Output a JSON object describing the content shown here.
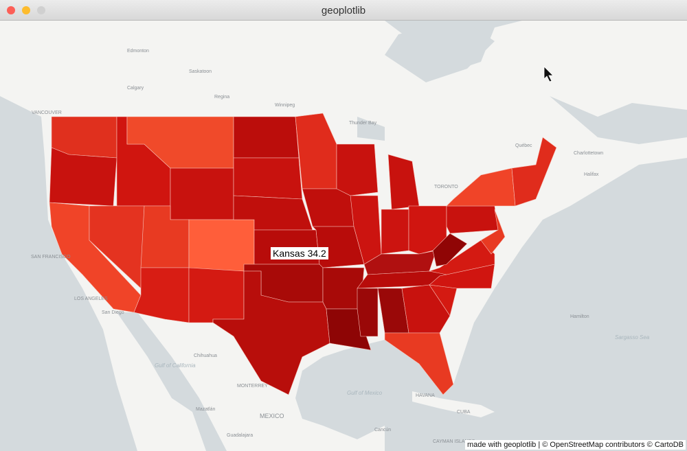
{
  "window": {
    "title": "geoplotlib"
  },
  "tooltip": "Kansas 34.2",
  "attribution": "made with geoplotlib | © OpenStreetMap contributors © CartoDB",
  "map_labels": [
    "Edmonton",
    "Saskatoon",
    "Calgary",
    "Regina",
    "Winnipeg",
    "VANCOUVER",
    "Thunder Bay",
    "Québec",
    "Charlottetown",
    "Halifax",
    "TORONTO",
    "SAN FRANCISCO",
    "LOS ANGELES",
    "San Diego",
    "Chihuahua",
    "MONTERREY",
    "MEXICO",
    "Gulf of California",
    "Gulf of Mexico",
    "HAVANA",
    "CUBA",
    "Cancún",
    "Guadalajara",
    "Mazatlán",
    "Sargasso Sea",
    "Hamilton",
    "CAYMAN ISLANDS"
  ]
}
